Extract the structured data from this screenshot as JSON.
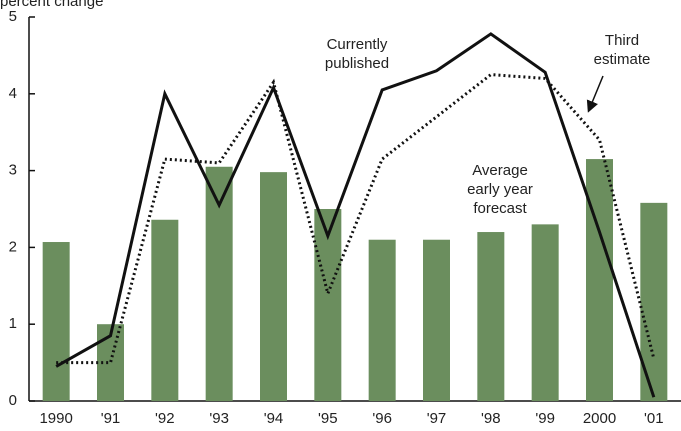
{
  "chart_data": {
    "type": "bar_line",
    "y_axis_label": "percent change",
    "categories": [
      "1990",
      "'91",
      "'92",
      "'93",
      "'94",
      "'95",
      "'96",
      "'97",
      "'98",
      "'99",
      "2000",
      "'01"
    ],
    "bars": {
      "color": "#6b8e5e",
      "values": [
        2.07,
        1.0,
        2.36,
        3.05,
        2.98,
        2.5,
        2.1,
        2.1,
        2.2,
        2.3,
        3.15,
        2.58
      ]
    },
    "series": [
      {
        "style": "solid",
        "color": "#111111",
        "values": [
          0.45,
          0.85,
          4.0,
          2.55,
          4.08,
          2.15,
          4.05,
          4.3,
          4.78,
          4.28,
          2.2,
          0.05
        ]
      },
      {
        "style": "dotted",
        "color": "#111111",
        "values": [
          0.5,
          0.5,
          3.15,
          3.1,
          4.15,
          1.4,
          3.15,
          3.7,
          4.25,
          4.2,
          3.4,
          0.55
        ]
      }
    ],
    "annotations": [
      {
        "lines": [
          "Currently",
          "published"
        ]
      },
      {
        "lines": [
          "Third",
          "estimate"
        ]
      },
      {
        "lines": [
          "Average",
          "early year",
          "forecast"
        ]
      }
    ],
    "ylim": [
      0,
      5
    ],
    "yticks": [
      0,
      1,
      2,
      3,
      4,
      5
    ]
  }
}
